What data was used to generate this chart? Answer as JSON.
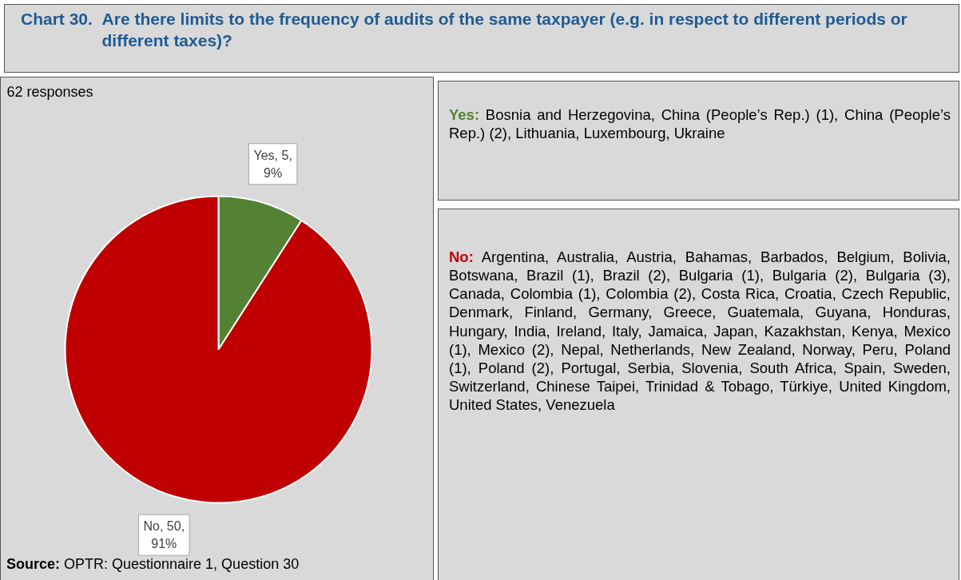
{
  "chart_data": {
    "type": "pie",
    "title": "Chart 30.  Are there limits to the frequency of audits of the same taxpayer (e.g. in respect to different periods or different taxes)?",
    "subtitle": "62 responses",
    "categories": [
      "Yes",
      "No"
    ],
    "values": [
      5,
      50
    ],
    "colors": [
      "#548235",
      "#c00000"
    ],
    "value_labels": [
      "5, 9%",
      "50, 91%"
    ],
    "annotations": [
      "Yes: Bosnia and Herzegovina, China (People’s Rep.) (1), China (People’s Rep.) (2), Lithuania, Luxembourg, Ukraine",
      "No: Argentina, Australia, Austria, Bahamas, Barbados, Belgium, Bolivia, Botswana, Brazil (1), Brazil (2), Bulgaria (1), Bulgaria (2), Bulgaria (3), Canada, Colombia (1), Colombia (2), Costa Rica, Croatia, Czech Republic, Denmark, Finland, Germany, Greece, Guatemala, Guyana, Honduras, Hungary, India, Ireland, Italy, Jamaica, Japan, Kazakhstan, Kenya, Mexico (1), Mexico (2), Nepal, Netherlands, New Zealand, Norway, Peru, Poland (1), Poland (2), Portugal, Serbia, Slovenia, South Africa, Spain, Sweden, Switzerland, Chinese Taipei, Trinidad & Tobago, Türkiye, United Kingdom, United States, Venezuela",
      "Source: OPTR: Questionnaire 1, Question 30"
    ]
  }
}
